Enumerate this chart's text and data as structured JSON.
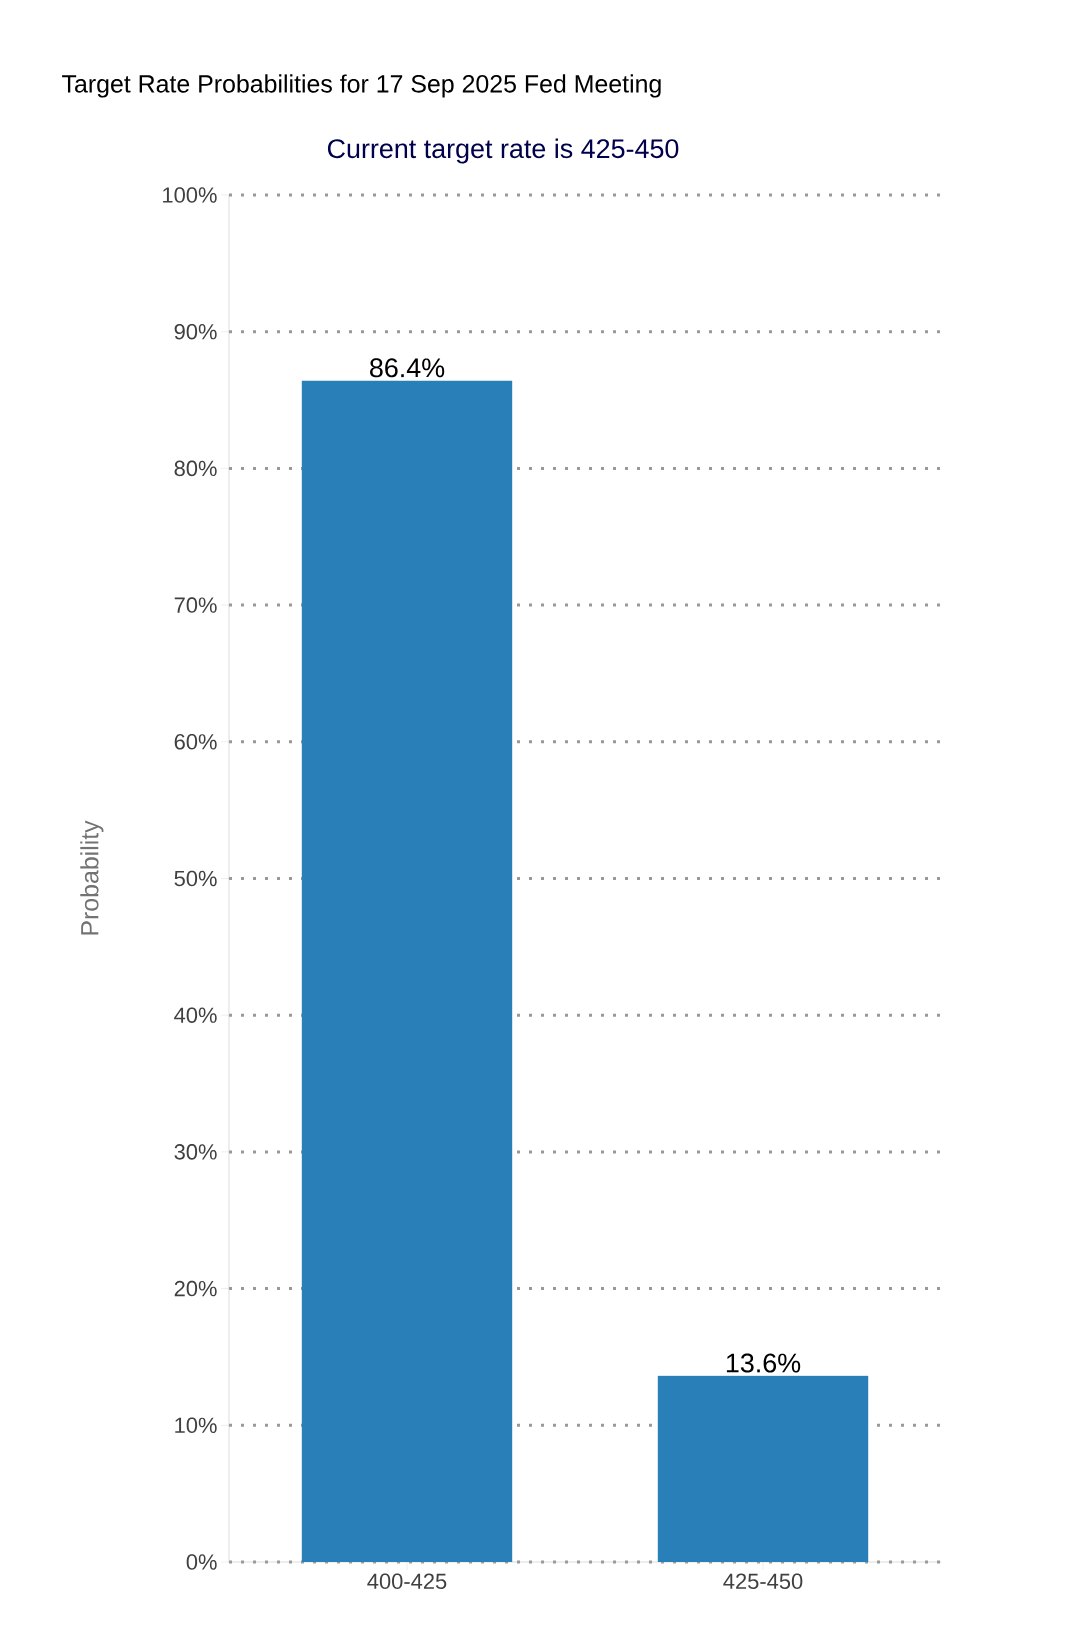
{
  "chart_data": {
    "type": "bar",
    "title": "Target Rate Probabilities for 17 Sep 2025 Fed Meeting",
    "subtitle": "Current target rate is 425-450",
    "ylabel": "Probability",
    "categories": [
      "400-425",
      "425-450"
    ],
    "values": [
      86.4,
      13.6
    ],
    "value_labels": [
      "86.4%",
      "13.6%"
    ],
    "color": "#2980b9",
    "ylim": [
      0,
      100
    ],
    "yticks": [
      {
        "value": 0,
        "label": "0%"
      },
      {
        "value": 10,
        "label": "10%"
      },
      {
        "value": 20,
        "label": "20%"
      },
      {
        "value": 30,
        "label": "30%"
      },
      {
        "value": 40,
        "label": "40%"
      },
      {
        "value": 50,
        "label": "50%"
      },
      {
        "value": 60,
        "label": "60%"
      },
      {
        "value": 70,
        "label": "70%"
      },
      {
        "value": 80,
        "label": "80%"
      },
      {
        "value": 90,
        "label": "90%"
      },
      {
        "value": 100,
        "label": "100%"
      }
    ],
    "grid": "y"
  }
}
